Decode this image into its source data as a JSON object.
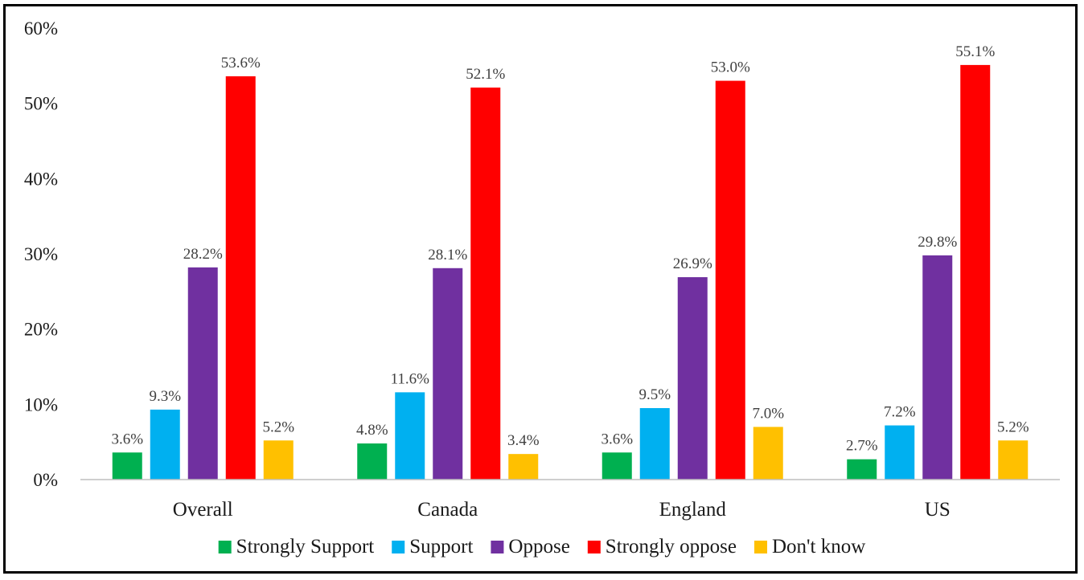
{
  "chart_data": {
    "type": "bar",
    "categories": [
      "Overall",
      "Canada",
      "England",
      "US"
    ],
    "series": [
      {
        "name": "Strongly Support",
        "color": "#00b050",
        "values": [
          3.6,
          4.8,
          3.6,
          2.7
        ]
      },
      {
        "name": "Support",
        "color": "#00b0f0",
        "values": [
          9.3,
          11.6,
          9.5,
          7.2
        ]
      },
      {
        "name": "Oppose",
        "color": "#7030a0",
        "values": [
          28.2,
          28.1,
          26.9,
          29.8
        ]
      },
      {
        "name": "Strongly oppose",
        "color": "#ff0000",
        "values": [
          53.6,
          52.1,
          53.0,
          55.1
        ]
      },
      {
        "name": "Don't know",
        "color": "#ffc000",
        "values": [
          5.2,
          3.4,
          7.0,
          5.2
        ]
      }
    ],
    "data_labels": [
      [
        "3.6%",
        "4.8%",
        "3.6%",
        "2.7%"
      ],
      [
        "9.3%",
        "11.6%",
        "9.5%",
        "7.2%"
      ],
      [
        "28.2%",
        "28.1%",
        "26.9%",
        "29.8%"
      ],
      [
        "53.6%",
        "52.1%",
        "53.0%",
        "55.1%"
      ],
      [
        "5.2%",
        "3.4%",
        "7.0%",
        "5.2%"
      ]
    ],
    "y_ticks": [
      "0%",
      "10%",
      "20%",
      "30%",
      "40%",
      "50%",
      "60%"
    ],
    "ylim": [
      0,
      60
    ],
    "grid": false,
    "legend_position": "bottom",
    "title": "",
    "xlabel": "",
    "ylabel": ""
  }
}
